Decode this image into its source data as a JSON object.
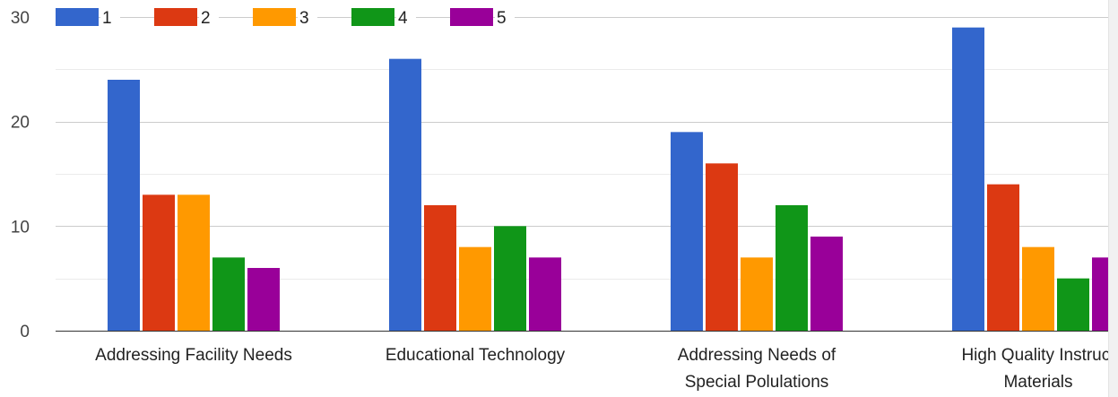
{
  "chart_data": {
    "type": "bar",
    "title": "",
    "xlabel": "",
    "ylabel": "",
    "ylim": [
      0,
      30
    ],
    "yticks": [
      0,
      10,
      20,
      30
    ],
    "grid": true,
    "legend_position": "top-left",
    "categories": [
      [
        "Addressing Facility Needs"
      ],
      [
        "Educational Technology"
      ],
      [
        "Addressing Needs of",
        "Special Polulations"
      ],
      [
        "High Quality Instruct",
        "Materials"
      ]
    ],
    "series": [
      {
        "name": "1",
        "color": "#3366cc",
        "values": [
          24,
          26,
          19,
          29
        ]
      },
      {
        "name": "2",
        "color": "#dc3912",
        "values": [
          13,
          12,
          16,
          14
        ]
      },
      {
        "name": "3",
        "color": "#ff9900",
        "values": [
          13,
          8,
          7,
          8
        ]
      },
      {
        "name": "4",
        "color": "#109618",
        "values": [
          7,
          10,
          12,
          5
        ]
      },
      {
        "name": "5",
        "color": "#990099",
        "values": [
          6,
          7,
          9,
          7
        ]
      }
    ]
  }
}
